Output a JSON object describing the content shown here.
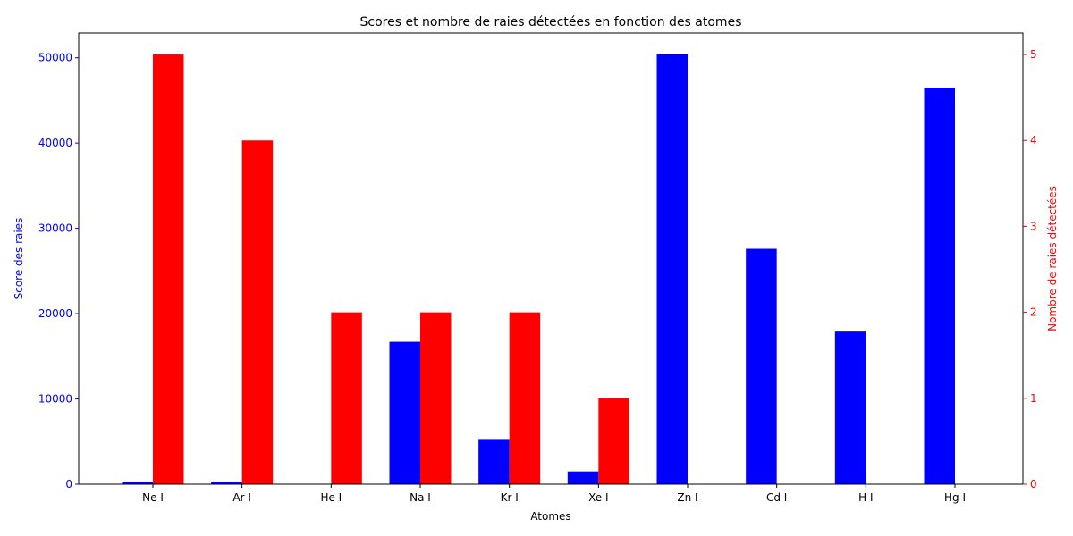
{
  "chart_data": {
    "type": "bar",
    "title": "Scores et nombre de raies détectées en fonction des atomes",
    "xlabel": "Atomes",
    "categories": [
      "Ne I",
      "Ar I",
      "He I",
      "Na I",
      "Kr I",
      "Xe I",
      "Zn I",
      "Cd I",
      "H I",
      "Hg I"
    ],
    "left_axis": {
      "label": "Score des raies",
      "color": "#0000ff",
      "ylim": [
        0,
        52900
      ],
      "ticks": [
        0,
        10000,
        20000,
        30000,
        40000,
        50000
      ]
    },
    "right_axis": {
      "label": "Nombre de raies détectées",
      "color": "#ff0000",
      "ylim": [
        0,
        5.25
      ],
      "ticks": [
        0,
        1,
        2,
        3,
        4,
        5
      ]
    },
    "series": [
      {
        "axis": "left",
        "color": "#0000ff",
        "values": [
          300,
          300,
          0,
          16700,
          5300,
          1500,
          50400,
          27600,
          17900,
          46500
        ]
      },
      {
        "axis": "right",
        "color": "#ff0000",
        "values": [
          5,
          4,
          2,
          2,
          2,
          1,
          0,
          0,
          0,
          0
        ]
      }
    ],
    "grid": false,
    "legend": "none"
  }
}
